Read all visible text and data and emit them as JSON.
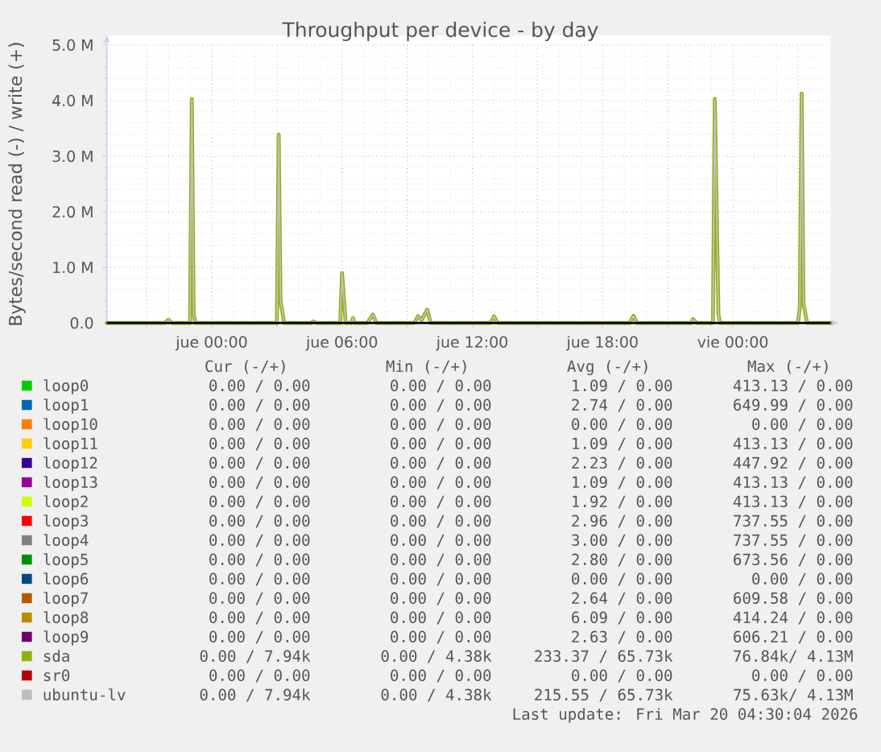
{
  "chart_data": {
    "type": "line",
    "title": "Throughput per device - by day",
    "ylabel": "Bytes/second read (-) / write (+)",
    "xlim": [
      "2026-03-18T19:10",
      "2026-03-20T04:30"
    ],
    "ylim": [
      0,
      5000000
    ],
    "xticks": [
      {
        "value": "2026-03-18T21:00",
        "label": null
      },
      {
        "value": "2026-03-19T00:00",
        "label": "jue 00:00"
      },
      {
        "value": "2026-03-19T03:00",
        "label": null
      },
      {
        "value": "2026-03-19T06:00",
        "label": "jue 06:00"
      },
      {
        "value": "2026-03-19T09:00",
        "label": null
      },
      {
        "value": "2026-03-19T12:00",
        "label": "jue 12:00"
      },
      {
        "value": "2026-03-19T15:00",
        "label": null
      },
      {
        "value": "2026-03-19T18:00",
        "label": "jue 18:00"
      },
      {
        "value": "2026-03-19T21:00",
        "label": null
      },
      {
        "value": "2026-03-20T00:00",
        "label": "vie 00:00"
      },
      {
        "value": "2026-03-20T03:00",
        "label": null
      }
    ],
    "yticks": [
      {
        "value": 0,
        "label": "0.0"
      },
      {
        "value": 1000000,
        "label": "1.0 M"
      },
      {
        "value": 2000000,
        "label": "2.0 M"
      },
      {
        "value": 3000000,
        "label": "3.0 M"
      },
      {
        "value": 4000000,
        "label": "4.0 M"
      },
      {
        "value": 5000000,
        "label": "5.0 M"
      }
    ],
    "grid": true,
    "legend": "bottom",
    "x": [
      "2026-03-18T19:10",
      "2026-03-18T21:50",
      "2026-03-18T22:00",
      "2026-03-18T22:10",
      "2026-03-18T23:00",
      "2026-03-18T23:05",
      "2026-03-18T23:10",
      "2026-03-18T23:15",
      "2026-03-19T03:00",
      "2026-03-19T03:05",
      "2026-03-19T03:10",
      "2026-03-19T03:20",
      "2026-03-19T04:35",
      "2026-03-19T04:40",
      "2026-03-19T04:50",
      "2026-03-19T05:55",
      "2026-03-19T06:00",
      "2026-03-19T06:10",
      "2026-03-19T06:25",
      "2026-03-19T06:30",
      "2026-03-19T06:35",
      "2026-03-19T07:10",
      "2026-03-19T07:25",
      "2026-03-19T07:35",
      "2026-03-19T09:20",
      "2026-03-19T09:30",
      "2026-03-19T09:40",
      "2026-03-19T09:55",
      "2026-03-19T10:05",
      "2026-03-19T12:50",
      "2026-03-19T13:00",
      "2026-03-19T13:10",
      "2026-03-19T19:15",
      "2026-03-19T19:25",
      "2026-03-19T19:35",
      "2026-03-19T22:05",
      "2026-03-19T22:10",
      "2026-03-19T22:20",
      "2026-03-19T23:05",
      "2026-03-19T23:10",
      "2026-03-19T23:20",
      "2026-03-19T23:25",
      "2026-03-20T03:00",
      "2026-03-20T03:05",
      "2026-03-20T03:10",
      "2026-03-20T03:15",
      "2026-03-20T03:25",
      "2026-03-20T04:30"
    ],
    "series": [
      {
        "name": "loop0",
        "color": "#00cc00",
        "values": [
          null,
          null,
          null,
          null,
          null,
          null,
          null,
          null,
          null,
          null,
          null,
          null,
          null,
          null,
          null,
          null,
          null,
          null,
          null,
          null,
          null,
          null,
          null,
          null,
          null,
          null,
          null,
          null,
          null,
          null,
          null,
          null,
          null,
          null,
          null,
          null,
          null,
          null,
          null,
          null,
          null,
          null,
          null,
          null,
          null,
          null,
          null,
          null
        ]
      },
      {
        "name": "loop1",
        "color": "#0066b3",
        "values": [
          null,
          null,
          null,
          null,
          null,
          null,
          null,
          null,
          null,
          null,
          null,
          null,
          null,
          null,
          null,
          null,
          null,
          null,
          null,
          null,
          null,
          null,
          null,
          null,
          null,
          null,
          null,
          null,
          null,
          null,
          null,
          null,
          null,
          null,
          null,
          null,
          null,
          null,
          null,
          null,
          null,
          null,
          null,
          null,
          null,
          null,
          null,
          null
        ]
      },
      {
        "name": "loop10",
        "color": "#ff8000",
        "values": [
          null,
          null,
          null,
          null,
          null,
          null,
          null,
          null,
          null,
          null,
          null,
          null,
          null,
          null,
          null,
          null,
          null,
          null,
          null,
          null,
          null,
          null,
          null,
          null,
          null,
          null,
          null,
          null,
          null,
          null,
          null,
          null,
          null,
          null,
          null,
          null,
          null,
          null,
          null,
          null,
          null,
          null,
          null,
          null,
          null,
          null,
          null,
          null
        ]
      },
      {
        "name": "loop11",
        "color": "#ffcc00",
        "values": [
          null,
          null,
          null,
          null,
          null,
          null,
          null,
          null,
          null,
          null,
          null,
          null,
          null,
          null,
          null,
          null,
          null,
          null,
          null,
          null,
          null,
          null,
          null,
          null,
          null,
          null,
          null,
          null,
          null,
          null,
          null,
          null,
          null,
          null,
          null,
          null,
          null,
          null,
          null,
          null,
          null,
          null,
          null,
          null,
          null,
          null,
          null,
          null
        ]
      },
      {
        "name": "loop12",
        "color": "#330099",
        "values": [
          null,
          null,
          null,
          null,
          null,
          null,
          null,
          null,
          null,
          null,
          null,
          null,
          null,
          null,
          null,
          null,
          null,
          null,
          null,
          null,
          null,
          null,
          null,
          null,
          null,
          null,
          null,
          null,
          null,
          null,
          null,
          null,
          null,
          null,
          null,
          null,
          null,
          null,
          null,
          null,
          null,
          null,
          null,
          null,
          null,
          null,
          null,
          null
        ]
      },
      {
        "name": "loop13",
        "color": "#990099",
        "values": [
          null,
          null,
          null,
          null,
          null,
          null,
          null,
          null,
          null,
          null,
          null,
          null,
          null,
          null,
          null,
          null,
          null,
          null,
          null,
          null,
          null,
          null,
          null,
          null,
          null,
          null,
          null,
          null,
          null,
          null,
          null,
          null,
          null,
          null,
          null,
          null,
          null,
          null,
          null,
          null,
          null,
          null,
          null,
          null,
          null,
          null,
          null,
          null
        ]
      },
      {
        "name": "loop2",
        "color": "#ccff00",
        "values": [
          null,
          null,
          null,
          null,
          null,
          null,
          null,
          null,
          null,
          null,
          null,
          null,
          null,
          null,
          null,
          null,
          null,
          null,
          null,
          null,
          null,
          null,
          null,
          null,
          null,
          null,
          null,
          null,
          null,
          null,
          null,
          null,
          null,
          null,
          null,
          null,
          null,
          null,
          null,
          null,
          null,
          null,
          null,
          null,
          null,
          null,
          null,
          null
        ]
      },
      {
        "name": "loop3",
        "color": "#ff0000",
        "values": [
          null,
          null,
          null,
          null,
          null,
          null,
          null,
          null,
          null,
          null,
          null,
          null,
          null,
          null,
          null,
          null,
          null,
          null,
          null,
          null,
          null,
          null,
          null,
          null,
          null,
          null,
          null,
          null,
          null,
          null,
          null,
          null,
          null,
          null,
          null,
          null,
          null,
          null,
          null,
          null,
          null,
          null,
          null,
          null,
          null,
          null,
          null,
          null
        ]
      },
      {
        "name": "loop4",
        "color": "#808080",
        "values": [
          null,
          null,
          null,
          null,
          null,
          null,
          null,
          null,
          null,
          null,
          null,
          null,
          null,
          null,
          null,
          null,
          null,
          null,
          null,
          null,
          null,
          null,
          null,
          null,
          null,
          null,
          null,
          null,
          null,
          null,
          null,
          null,
          null,
          null,
          null,
          null,
          null,
          null,
          null,
          null,
          null,
          null,
          null,
          null,
          null,
          null,
          null,
          null
        ]
      },
      {
        "name": "loop5",
        "color": "#008f00",
        "values": [
          null,
          null,
          null,
          null,
          null,
          null,
          null,
          null,
          null,
          null,
          null,
          null,
          null,
          null,
          null,
          null,
          null,
          null,
          null,
          null,
          null,
          null,
          null,
          null,
          null,
          null,
          null,
          null,
          null,
          null,
          null,
          null,
          null,
          null,
          null,
          null,
          null,
          null,
          null,
          null,
          null,
          null,
          null,
          null,
          null,
          null,
          null,
          null
        ]
      },
      {
        "name": "loop6",
        "color": "#00487d",
        "values": [
          null,
          null,
          null,
          null,
          null,
          null,
          null,
          null,
          null,
          null,
          null,
          null,
          null,
          null,
          null,
          null,
          null,
          null,
          null,
          null,
          null,
          null,
          null,
          null,
          null,
          null,
          null,
          null,
          null,
          null,
          null,
          null,
          null,
          null,
          null,
          null,
          null,
          null,
          null,
          null,
          null,
          null,
          null,
          null,
          null,
          null,
          null,
          null
        ]
      },
      {
        "name": "loop7",
        "color": "#b35a00",
        "values": [
          null,
          null,
          null,
          null,
          null,
          null,
          null,
          null,
          null,
          null,
          null,
          null,
          null,
          null,
          null,
          null,
          null,
          null,
          null,
          null,
          null,
          null,
          null,
          null,
          null,
          null,
          null,
          null,
          null,
          null,
          null,
          null,
          null,
          null,
          null,
          null,
          null,
          null,
          null,
          null,
          null,
          null,
          null,
          null,
          null,
          null,
          null,
          null
        ]
      },
      {
        "name": "loop8",
        "color": "#b38f00",
        "values": [
          null,
          null,
          null,
          null,
          null,
          null,
          null,
          null,
          null,
          null,
          null,
          null,
          null,
          null,
          null,
          null,
          null,
          null,
          null,
          null,
          null,
          null,
          null,
          null,
          null,
          null,
          null,
          null,
          null,
          null,
          null,
          null,
          null,
          null,
          null,
          null,
          null,
          null,
          null,
          null,
          null,
          null,
          null,
          null,
          null,
          null,
          null,
          null
        ]
      },
      {
        "name": "loop9",
        "color": "#6b006b",
        "values": [
          null,
          null,
          null,
          null,
          null,
          null,
          null,
          null,
          null,
          null,
          null,
          null,
          null,
          null,
          null,
          null,
          null,
          null,
          null,
          null,
          null,
          null,
          null,
          null,
          null,
          null,
          null,
          null,
          null,
          null,
          null,
          null,
          null,
          null,
          null,
          null,
          null,
          null,
          null,
          null,
          null,
          null,
          null,
          null,
          null,
          null,
          null,
          null
        ]
      },
      {
        "name": "sda",
        "color": "#8fb300",
        "values": [
          0,
          0,
          60000,
          0,
          0,
          4030000,
          150000,
          0,
          0,
          3390000,
          400000,
          0,
          0,
          30000,
          0,
          0,
          900000,
          0,
          0,
          90000,
          0,
          0,
          150000,
          0,
          0,
          120000,
          50000,
          240000,
          0,
          0,
          120000,
          0,
          0,
          130000,
          0,
          0,
          70000,
          0,
          0,
          4030000,
          150000,
          0,
          0,
          300000,
          4130000,
          350000,
          0,
          0
        ]
      },
      {
        "name": "sr0",
        "color": "#b30000",
        "values": [
          null,
          null,
          null,
          null,
          null,
          null,
          null,
          null,
          null,
          null,
          null,
          null,
          null,
          null,
          null,
          null,
          null,
          null,
          null,
          null,
          null,
          null,
          null,
          null,
          null,
          null,
          null,
          null,
          null,
          null,
          null,
          null,
          null,
          null,
          null,
          null,
          null,
          null,
          null,
          null,
          null,
          null,
          null,
          null,
          null,
          null,
          null,
          null
        ]
      },
      {
        "name": "ubuntu-lv",
        "color": "#bebebe",
        "values": [
          0,
          0,
          60000,
          0,
          0,
          4030000,
          150000,
          0,
          0,
          3390000,
          400000,
          0,
          0,
          30000,
          0,
          0,
          900000,
          0,
          0,
          90000,
          0,
          0,
          150000,
          0,
          0,
          120000,
          50000,
          240000,
          0,
          0,
          120000,
          0,
          0,
          130000,
          0,
          0,
          70000,
          0,
          0,
          4030000,
          150000,
          0,
          0,
          300000,
          4130000,
          350000,
          0,
          0
        ]
      }
    ],
    "ref_lines": [
      {
        "axis": "y",
        "value": 0,
        "color": "#000000"
      }
    ],
    "annotations": [
      "Cur (-/+)",
      "Min (-/+)",
      "Avg (-/+)",
      "Max (-/+)",
      "0.00 / 0.00",
      "0.00 / 0.00",
      "1.09 / 0.00",
      "413.13 / 0.00",
      "0.00 / 0.00",
      "0.00 / 0.00",
      "2.74 / 0.00",
      "649.99 / 0.00",
      "0.00 / 0.00",
      "0.00 / 0.00",
      "0.00 / 0.00",
      "0.00 / 0.00",
      "0.00 / 0.00",
      "0.00 / 0.00",
      "1.09 / 0.00",
      "413.13 / 0.00",
      "0.00 / 0.00",
      "0.00 / 0.00",
      "2.23 / 0.00",
      "447.92 / 0.00",
      "0.00 / 0.00",
      "0.00 / 0.00",
      "1.09 / 0.00",
      "413.13 / 0.00",
      "0.00 / 0.00",
      "0.00 / 0.00",
      "1.92 / 0.00",
      "413.13 / 0.00",
      "0.00 / 0.00",
      "0.00 / 0.00",
      "2.96 / 0.00",
      "737.55 / 0.00",
      "0.00 / 0.00",
      "0.00 / 0.00",
      "3.00 / 0.00",
      "737.55 / 0.00",
      "0.00 / 0.00",
      "0.00 / 0.00",
      "2.80 / 0.00",
      "673.56 / 0.00",
      "0.00 / 0.00",
      "0.00 / 0.00",
      "0.00 / 0.00",
      "0.00 / 0.00",
      "0.00 / 0.00",
      "0.00 / 0.00",
      "2.64 / 0.00",
      "609.58 / 0.00",
      "0.00 / 0.00",
      "0.00 / 0.00",
      "6.09 / 0.00",
      "414.24 / 0.00",
      "0.00 / 0.00",
      "0.00 / 0.00",
      "2.63 / 0.00",
      "606.21 / 0.00",
      "0.00 / 7.94k",
      "0.00 / 4.38k",
      "233.37 / 65.73k",
      "76.84k/ 4.13M",
      "0.00 / 0.00",
      "0.00 / 0.00",
      "0.00 / 0.00",
      "0.00 / 0.00",
      "0.00 / 7.94k",
      "0.00 / 4.38k",
      "215.55 / 65.73k",
      "75.63k/ 4.13M",
      "Last update: Fri Mar 20 04:30:04 2026"
    ]
  }
}
